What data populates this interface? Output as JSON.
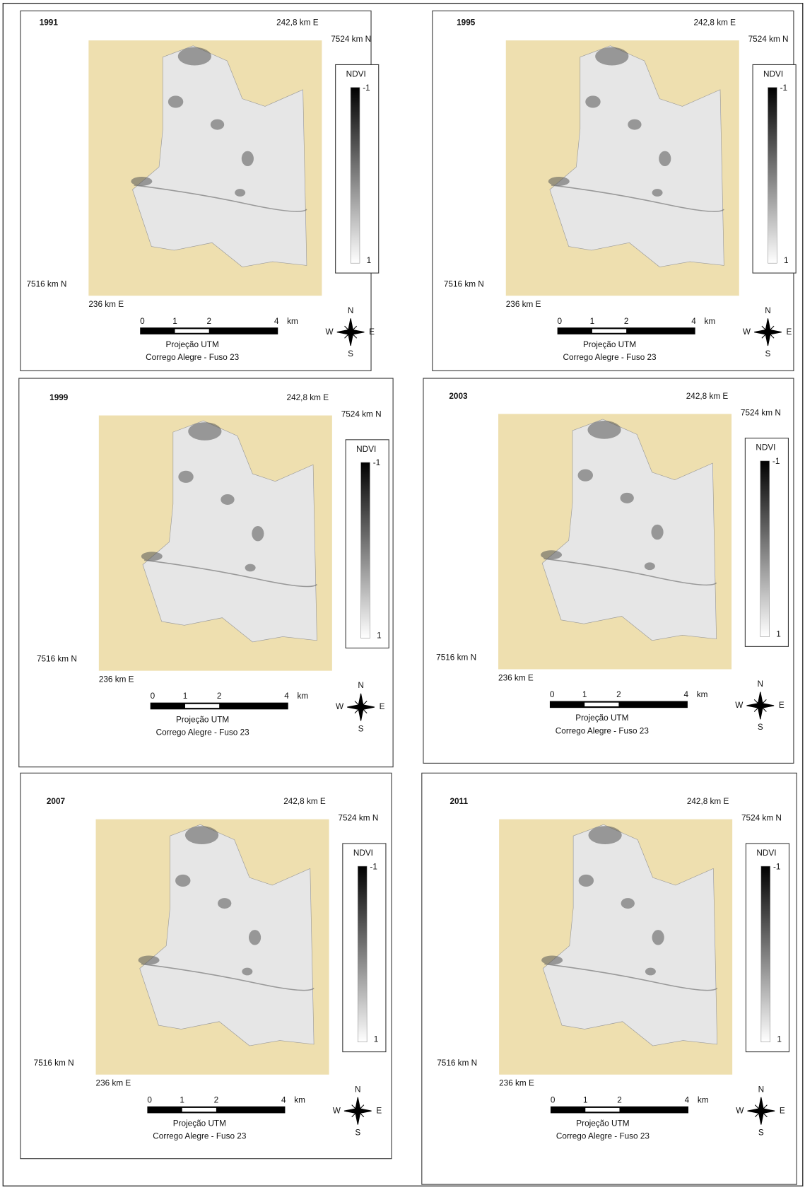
{
  "panels": [
    {
      "year": "1991",
      "top_easting": "242,8 km E",
      "right_northing": "7524 km N",
      "left_northing": "7516 km N",
      "bottom_easting": "236 km E",
      "legend": {
        "title": "NDVI",
        "top_label": "-1",
        "bottom_label": "1"
      },
      "scale": {
        "ticks": [
          "0",
          "1",
          "2",
          "4"
        ],
        "unit": "km"
      },
      "projection": "Projeção UTM",
      "datum": "Corrego Alegre - Fuso 23",
      "compass": {
        "n": "N",
        "s": "S",
        "w": "W",
        "e": "E"
      }
    },
    {
      "year": "1995",
      "top_easting": "242,8 km E",
      "right_northing": "7524 km N",
      "left_northing": "7516 km N",
      "bottom_easting": "236 km E",
      "legend": {
        "title": "NDVI",
        "top_label": "-1",
        "bottom_label": "1"
      },
      "scale": {
        "ticks": [
          "0",
          "1",
          "2",
          "4"
        ],
        "unit": "km"
      },
      "projection": "Projeção UTM",
      "datum": "Corrego Alegre - Fuso 23",
      "compass": {
        "n": "N",
        "s": "S",
        "w": "W",
        "e": "E"
      }
    },
    {
      "year": "1999",
      "top_easting": "242,8 km E",
      "right_northing": "7524 km N",
      "left_northing": "7516 km N",
      "bottom_easting": "236 km E",
      "legend": {
        "title": "NDVI",
        "top_label": "-1",
        "bottom_label": "1"
      },
      "scale": {
        "ticks": [
          "0",
          "1",
          "2",
          "4"
        ],
        "unit": "km"
      },
      "projection": "Projeção UTM",
      "datum": "Corrego Alegre - Fuso 23",
      "compass": {
        "n": "N",
        "s": "S",
        "w": "W",
        "e": "E"
      }
    },
    {
      "year": "2003",
      "top_easting": "242,8 km E",
      "right_northing": "7524 km N",
      "left_northing": "7516 km N",
      "bottom_easting": "236 km E",
      "legend": {
        "title": "NDVI",
        "top_label": "-1",
        "bottom_label": "1"
      },
      "scale": {
        "ticks": [
          "0",
          "1",
          "2",
          "4"
        ],
        "unit": "km"
      },
      "projection": "Projeção UTM",
      "datum": "Corrego Alegre - Fuso 23",
      "compass": {
        "n": "N",
        "s": "S",
        "w": "W",
        "e": "E"
      }
    },
    {
      "year": "2007",
      "top_easting": "242,8 km E",
      "right_northing": "7524 km N",
      "left_northing": "7516 km N",
      "bottom_easting": "236 km E",
      "legend": {
        "title": "NDVI",
        "top_label": "-1",
        "bottom_label": "1"
      },
      "scale": {
        "ticks": [
          "0",
          "1",
          "2",
          "4"
        ],
        "unit": "km"
      },
      "projection": "Projeção UTM",
      "datum": "Corrego Alegre - Fuso 23",
      "compass": {
        "n": "N",
        "s": "S",
        "w": "W",
        "e": "E"
      }
    },
    {
      "year": "2011",
      "top_easting": "242,8 km E",
      "right_northing": "7524 km N",
      "left_northing": "7516 km N",
      "bottom_easting": "236 km E",
      "legend": {
        "title": "NDVI",
        "top_label": "-1",
        "bottom_label": "1"
      },
      "scale": {
        "ticks": [
          "0",
          "1",
          "2",
          "4"
        ],
        "unit": "km"
      },
      "projection": "Projeção UTM",
      "datum": "Corrego Alegre - Fuso 23",
      "compass": {
        "n": "N",
        "s": "S",
        "w": "W",
        "e": "E"
      }
    }
  ]
}
